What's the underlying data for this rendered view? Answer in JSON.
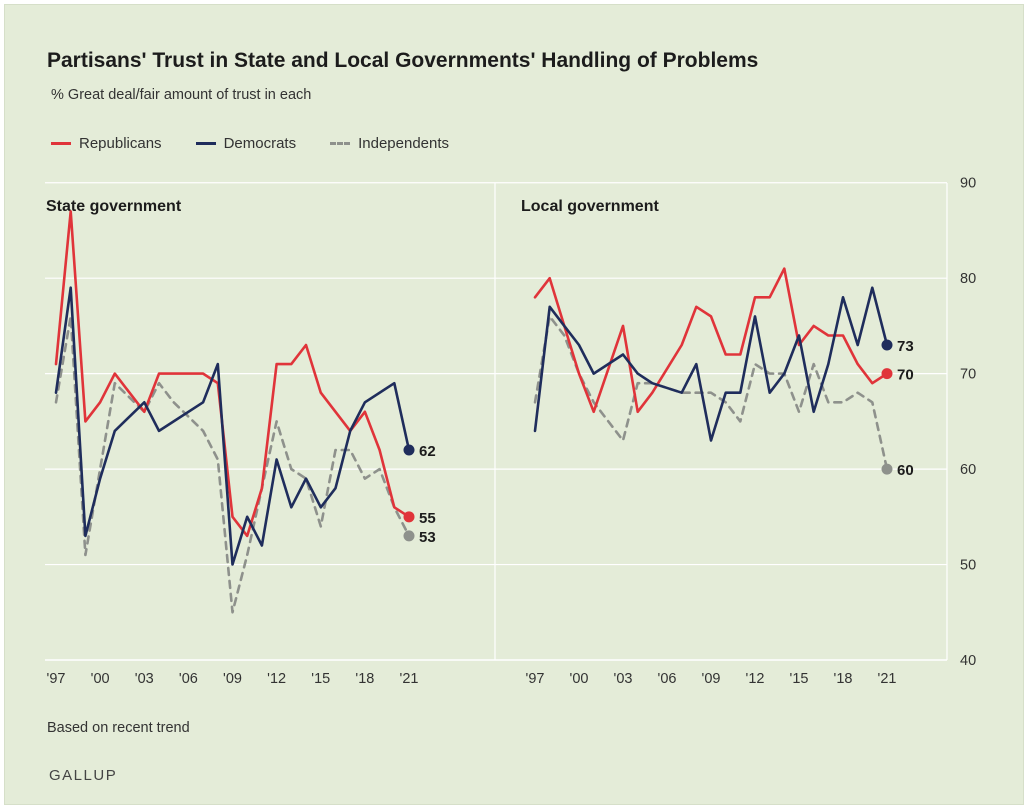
{
  "header": {
    "title": "Partisans' Trust in State and Local Governments' Handling of Problems",
    "subtitle": "% Great deal/fair amount of trust in each"
  },
  "footer": {
    "note": "Based on recent trend",
    "brand": "GALLUP"
  },
  "colors": {
    "background": "#e4ecd8",
    "republicans": "#e0343a",
    "democrats": "#1f2d5c",
    "independents": "#8e918c",
    "grid": "#ffffff"
  },
  "chart_data": [
    {
      "type": "line",
      "title": "State government",
      "x": [
        1997,
        1998,
        1999,
        2000,
        2001,
        2003,
        2004,
        2005,
        2007,
        2008,
        2009,
        2010,
        2011,
        2012,
        2013,
        2014,
        2015,
        2016,
        2017,
        2018,
        2019,
        2020,
        2021
      ],
      "series": [
        {
          "name": "Republicans",
          "values": [
            71,
            87,
            65,
            67,
            70,
            66,
            70,
            70,
            70,
            69,
            55,
            53,
            58,
            71,
            71,
            73,
            68,
            null,
            64,
            66,
            62,
            56,
            55
          ]
        },
        {
          "name": "Democrats",
          "values": [
            68,
            79,
            53,
            59,
            64,
            67,
            64,
            null,
            67,
            71,
            50,
            55,
            52,
            61,
            56,
            59,
            56,
            58,
            64,
            67,
            null,
            69,
            62
          ]
        },
        {
          "name": "Independents",
          "values": [
            67,
            76,
            51,
            60,
            69,
            66,
            69,
            67,
            64,
            61,
            45,
            51,
            58,
            65,
            60,
            59,
            54,
            62,
            62,
            59,
            60,
            56,
            53
          ]
        }
      ],
      "end_labels": {
        "Republicans": "55",
        "Democrats": "62",
        "Independents": "53"
      },
      "x_ticks": [
        "'97",
        "'00",
        "'03",
        "'06",
        "'09",
        "'12",
        "'15",
        "'18",
        "'21"
      ],
      "x_tick_years": [
        1997,
        2000,
        2003,
        2006,
        2009,
        2012,
        2015,
        2018,
        2021
      ],
      "xlim": [
        1997,
        2021
      ],
      "ylim": [
        40,
        95
      ],
      "grid": true
    },
    {
      "type": "line",
      "title": "Local government",
      "x": [
        1997,
        1998,
        1999,
        2000,
        2001,
        2003,
        2004,
        2005,
        2007,
        2008,
        2009,
        2010,
        2011,
        2012,
        2013,
        2014,
        2015,
        2016,
        2017,
        2018,
        2019,
        2020,
        2021
      ],
      "series": [
        {
          "name": "Republicans",
          "values": [
            78,
            80,
            75,
            70,
            66,
            75,
            66,
            68,
            73,
            77,
            76,
            72,
            72,
            78,
            78,
            81,
            73,
            75,
            74,
            74,
            71,
            69,
            70
          ]
        },
        {
          "name": "Democrats",
          "values": [
            64,
            77,
            75,
            73,
            70,
            72,
            70,
            69,
            68,
            71,
            63,
            68,
            68,
            76,
            68,
            70,
            74,
            66,
            71,
            78,
            73,
            79,
            73
          ]
        },
        {
          "name": "Independents",
          "values": [
            67,
            76,
            74,
            70,
            67,
            63,
            69,
            69,
            68,
            68,
            68,
            67,
            65,
            71,
            70,
            70,
            66,
            71,
            67,
            67,
            68,
            67,
            60
          ]
        }
      ],
      "end_labels": {
        "Republicans": "70",
        "Democrats": "73",
        "Independents": "60"
      },
      "x_ticks": [
        "'97",
        "'00",
        "'03",
        "'06",
        "'09",
        "'12",
        "'15",
        "'18",
        "'21"
      ],
      "x_tick_years": [
        1997,
        2000,
        2003,
        2006,
        2009,
        2012,
        2015,
        2018,
        2021
      ],
      "xlim": [
        1997,
        2021
      ],
      "ylim": [
        40,
        95
      ],
      "grid": true
    }
  ],
  "y_axis": {
    "ticks": [
      40,
      50,
      60,
      70,
      80,
      90
    ],
    "tick_labels": [
      "40",
      "50",
      "60",
      "70",
      "80",
      "90"
    ],
    "position": "right"
  },
  "legend": {
    "items": [
      {
        "name": "Republicans",
        "style": "solid"
      },
      {
        "name": "Democrats",
        "style": "solid"
      },
      {
        "name": "Independents",
        "style": "dashed"
      }
    ],
    "placement": "top-left"
  }
}
